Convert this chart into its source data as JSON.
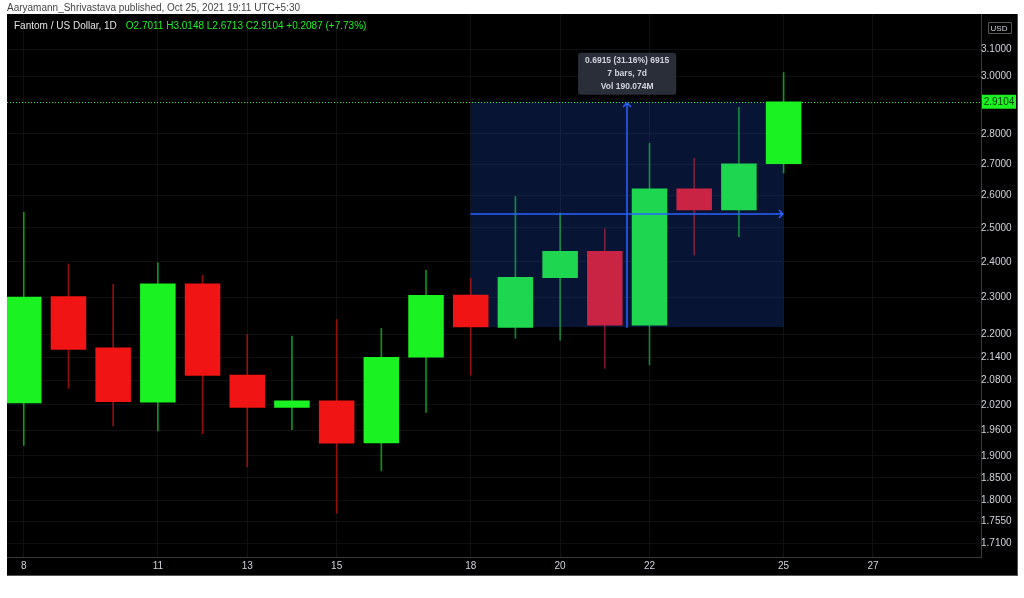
{
  "chart_data": {
    "type": "candlestick",
    "title": "Fantom / US Dollar, 1D",
    "subtitle": "O2.7011 H3.0148 L2.6713 C2.9104 +0.2087 (+7.73%)",
    "ylabel": "USD",
    "annotations": [
      "Aaryamann_Shrivastava published, Oct 25, 2021 19:11 UTC+5:30"
    ],
    "x": [
      "2021-10-08",
      "2021-10-09",
      "2021-10-10",
      "2021-10-11",
      "2021-10-12",
      "2021-10-13",
      "2021-10-14",
      "2021-10-15",
      "2021-10-16",
      "2021-10-17",
      "2021-10-18",
      "2021-10-19",
      "2021-10-20",
      "2021-10-21",
      "2021-10-22",
      "2021-10-23",
      "2021-10-24",
      "2021-10-25"
    ],
    "ohlc": [
      [
        2.025,
        2.548,
        1.924,
        2.3
      ],
      [
        2.302,
        2.394,
        2.061,
        2.16
      ],
      [
        2.164,
        2.336,
        1.969,
        2.028
      ],
      [
        2.027,
        2.397,
        1.958,
        2.337
      ],
      [
        2.337,
        2.361,
        1.951,
        2.093
      ],
      [
        2.094,
        2.199,
        1.875,
        2.014
      ],
      [
        2.014,
        2.195,
        1.961,
        2.03
      ],
      [
        2.03,
        2.239,
        1.773,
        1.929
      ],
      [
        1.93,
        2.215,
        1.866,
        2.139
      ],
      [
        2.14,
        2.376,
        2.002,
        2.305
      ],
      [
        2.306,
        2.353,
        2.094,
        2.219
      ],
      [
        2.218,
        2.596,
        2.189,
        2.356
      ],
      [
        2.355,
        2.545,
        2.184,
        2.431
      ],
      [
        2.431,
        2.498,
        2.111,
        2.224
      ],
      [
        2.224,
        2.768,
        2.12,
        2.621
      ],
      [
        2.621,
        2.719,
        2.42,
        2.555
      ],
      [
        2.555,
        2.891,
        2.474,
        2.701
      ],
      [
        2.7011,
        3.0148,
        2.6713,
        2.9104
      ]
    ],
    "colors": [
      "#1af222",
      "#f01414",
      "#f01414",
      "#1af222",
      "#f01414",
      "#f01414",
      "#1af222",
      "#f01414",
      "#1af222",
      "#1af222",
      "#f01414",
      "#1ed650",
      "#1ed650",
      "#c92443",
      "#1ed650",
      "#c92443",
      "#1ed650",
      "#1af222"
    ],
    "xlim": [
      "2021-10-07T15:00",
      "2021-10-29T10:00"
    ],
    "xticks": [
      {
        "value": "2021-10-08",
        "label": "8"
      },
      {
        "value": "2021-10-11",
        "label": "11"
      },
      {
        "value": "2021-10-13",
        "label": "13"
      },
      {
        "value": "2021-10-15",
        "label": "15"
      },
      {
        "value": "2021-10-18",
        "label": "18"
      },
      {
        "value": "2021-10-20",
        "label": "20"
      },
      {
        "value": "2021-10-22",
        "label": "22"
      },
      {
        "value": "2021-10-25",
        "label": "25"
      },
      {
        "value": "2021-10-27",
        "label": "27"
      }
    ],
    "ylim": [
      1.682,
      3.235
    ],
    "yticks": [
      {
        "value": 1.71,
        "label": "1.7100"
      },
      {
        "value": 1.755,
        "label": "1.7550"
      },
      {
        "value": 1.8,
        "label": "1.8000"
      },
      {
        "value": 1.85,
        "label": "1.8500"
      },
      {
        "value": 1.9,
        "label": "1.9000"
      },
      {
        "value": 1.96,
        "label": "1.9600"
      },
      {
        "value": 2.02,
        "label": "2.0200"
      },
      {
        "value": 2.08,
        "label": "2.0800"
      },
      {
        "value": 2.14,
        "label": "2.1400"
      },
      {
        "value": 2.2,
        "label": "2.2000"
      },
      {
        "value": 2.3,
        "label": "2.3000"
      },
      {
        "value": 2.4,
        "label": "2.4000"
      },
      {
        "value": 2.5,
        "label": "2.5000"
      },
      {
        "value": 2.6,
        "label": "2.6000"
      },
      {
        "value": 2.7,
        "label": "2.7000"
      },
      {
        "value": 2.8,
        "label": "2.8000"
      },
      {
        "value": 3.0,
        "label": "3.0000"
      },
      {
        "value": 3.1,
        "label": "3.1000"
      }
    ],
    "log": true,
    "grid": true,
    "ref_lines": [
      {
        "axis": "y",
        "value": 2.9104,
        "label": "2.9104",
        "color": "#1af222",
        "line_style": "dotted"
      }
    ],
    "bands": [
      {
        "axis": "x",
        "from": "2021-10-18",
        "to": "2021-10-25",
        "label": "0.6915 (31.16%) 6915\n7 bars, 7d\nVol 190.074M",
        "color": "#2962ff"
      }
    ]
  }
}
